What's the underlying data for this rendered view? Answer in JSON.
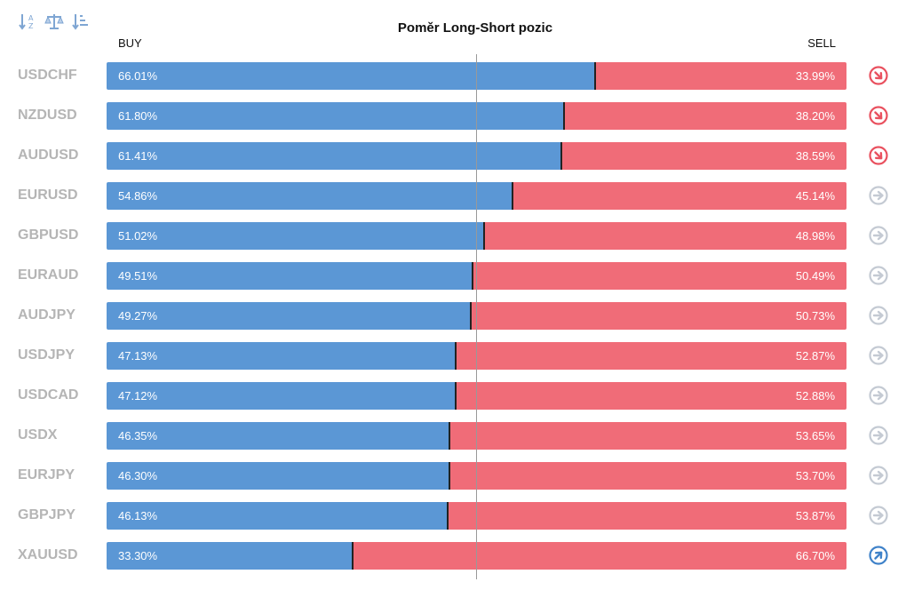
{
  "title": "Poměr Long-Short pozic",
  "buy_label": "BUY",
  "sell_label": "SELL",
  "colors": {
    "buy": "#5b97d5",
    "sell": "#f06c78",
    "down": "#e9515f",
    "neutral": "#c4cad3",
    "up": "#3f82c9"
  },
  "toolbar": [
    {
      "icon": "sort-alpha-icon"
    },
    {
      "icon": "balance-scale-icon"
    },
    {
      "icon": "sort-amount-icon"
    }
  ],
  "chart_data": {
    "type": "bar",
    "title": "Poměr Long-Short pozic",
    "categories": [
      "USDCHF",
      "NZDUSD",
      "AUDUSD",
      "EURUSD",
      "GBPUSD",
      "EURAUD",
      "AUDJPY",
      "USDJPY",
      "USDCAD",
      "USDX",
      "EURJPY",
      "GBPJPY",
      "XAUUSD"
    ],
    "series": [
      {
        "name": "BUY",
        "values": [
          66.01,
          61.8,
          61.41,
          54.86,
          51.02,
          49.51,
          49.27,
          47.13,
          47.12,
          46.35,
          46.3,
          46.13,
          33.3
        ]
      },
      {
        "name": "SELL",
        "values": [
          33.99,
          38.2,
          38.59,
          45.14,
          48.98,
          50.49,
          50.73,
          52.87,
          52.88,
          53.65,
          53.7,
          53.87,
          66.7
        ]
      }
    ],
    "buy_text": [
      "66.01%",
      "61.80%",
      "61.41%",
      "54.86%",
      "51.02%",
      "49.51%",
      "49.27%",
      "47.13%",
      "47.12%",
      "46.35%",
      "46.30%",
      "46.13%",
      "33.30%"
    ],
    "sell_text": [
      "33.99%",
      "38.20%",
      "38.59%",
      "45.14%",
      "48.98%",
      "50.49%",
      "50.73%",
      "52.87%",
      "52.88%",
      "53.65%",
      "53.70%",
      "53.87%",
      "66.70%"
    ],
    "trend": [
      "down",
      "down",
      "down",
      "neutral",
      "neutral",
      "neutral",
      "neutral",
      "neutral",
      "neutral",
      "neutral",
      "neutral",
      "neutral",
      "up"
    ],
    "stacked": true,
    "orientation": "horizontal",
    "ylim": [
      0,
      100
    ],
    "reference_line": 50
  }
}
